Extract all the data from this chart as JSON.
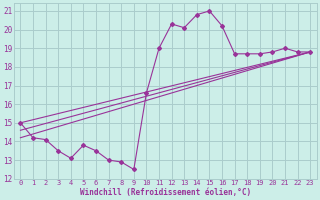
{
  "background_color": "#cceee8",
  "grid_color": "#aacccc",
  "line_color": "#993399",
  "xlim": [
    -0.5,
    23.5
  ],
  "ylim": [
    12,
    21.4
  ],
  "xticks": [
    0,
    1,
    2,
    3,
    4,
    5,
    6,
    7,
    8,
    9,
    10,
    11,
    12,
    13,
    14,
    15,
    16,
    17,
    18,
    19,
    20,
    21,
    22,
    23
  ],
  "yticks": [
    12,
    13,
    14,
    15,
    16,
    17,
    18,
    19,
    20,
    21
  ],
  "xlabel": "Windchill (Refroidissement éolien,°C)",
  "series1_x": [
    0,
    1,
    2,
    3,
    4,
    5,
    6,
    7,
    8,
    9,
    10,
    11,
    12,
    13,
    14,
    15,
    16,
    17,
    18,
    19,
    20,
    21,
    22,
    23
  ],
  "series1_y": [
    15.0,
    14.2,
    14.1,
    13.5,
    13.1,
    13.8,
    13.5,
    13.0,
    12.9,
    12.5,
    16.6,
    19.0,
    20.3,
    20.1,
    20.8,
    21.0,
    20.2,
    18.7,
    18.7,
    18.7,
    18.8,
    19.0,
    18.8,
    18.8
  ],
  "series2_x": [
    0,
    23
  ],
  "series2_y": [
    14.2,
    18.8
  ],
  "series3_x": [
    0,
    23
  ],
  "series3_y": [
    14.6,
    18.8
  ],
  "series4_x": [
    0,
    23
  ],
  "series4_y": [
    15.0,
    18.8
  ]
}
